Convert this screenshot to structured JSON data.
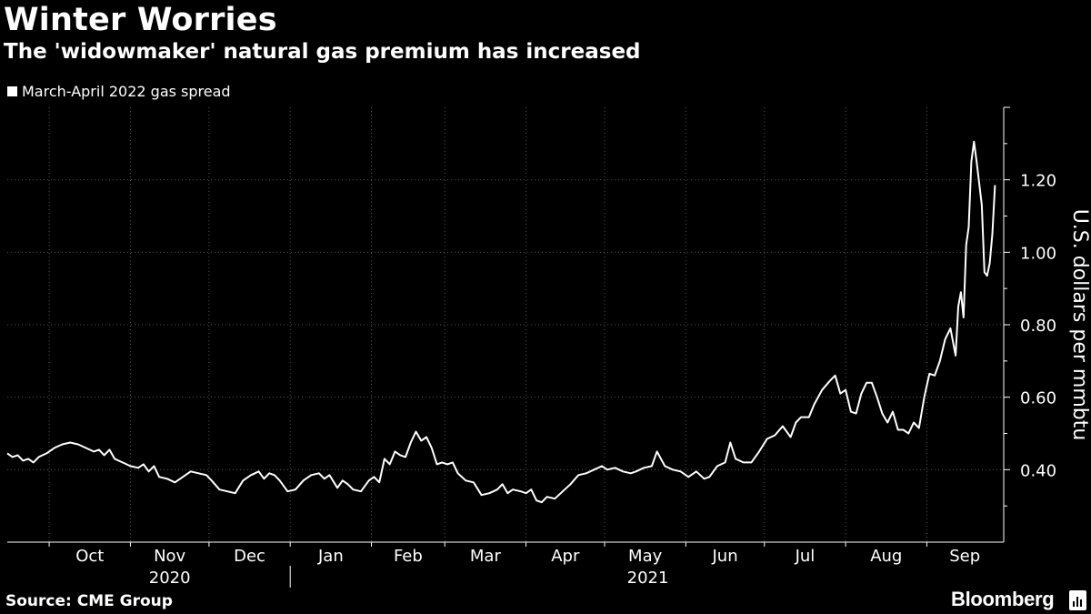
{
  "header": {
    "title": "Winter Worries",
    "subtitle": "The 'widowmaker' natural gas premium has increased",
    "legend_label": "March-April 2022 gas spread"
  },
  "footer": {
    "source": "Source: CME Group",
    "brand": "Bloomberg"
  },
  "colors": {
    "background": "#000000",
    "line": "#ffffff",
    "grid": "#555555"
  },
  "chart_data": {
    "type": "line",
    "title": "Winter Worries",
    "subtitle": "The 'widowmaker' natural gas premium has increased",
    "ylabel": "U.S. dollars per mmbtu",
    "ylim": [
      0.2,
      1.4
    ],
    "yticks": [
      0.4,
      0.6,
      0.8,
      1.0,
      1.2
    ],
    "ytick_labels": [
      "0.40",
      "0.60",
      "0.80",
      "1.00",
      "1.20"
    ],
    "xlim": [
      "2020-09-15",
      "2021-09-30"
    ],
    "month_boundaries": [
      "2020-10-01",
      "2020-11-01",
      "2020-12-01",
      "2021-01-01",
      "2021-02-01",
      "2021-03-01",
      "2021-04-01",
      "2021-05-01",
      "2021-06-01",
      "2021-07-01",
      "2021-08-01",
      "2021-09-01"
    ],
    "x_tick_labels": [
      {
        "label": "Oct",
        "date": "2020-10-01"
      },
      {
        "label": "Nov",
        "date": "2020-11-01"
      },
      {
        "label": "Dec",
        "date": "2020-12-01"
      },
      {
        "label": "Jan",
        "date": "2021-01-01"
      },
      {
        "label": "Feb",
        "date": "2021-02-01"
      },
      {
        "label": "Mar",
        "date": "2021-03-01"
      },
      {
        "label": "Apr",
        "date": "2021-04-01"
      },
      {
        "label": "May",
        "date": "2021-05-01"
      },
      {
        "label": "Jun",
        "date": "2021-06-01"
      },
      {
        "label": "Jul",
        "date": "2021-07-01"
      },
      {
        "label": "Aug",
        "date": "2021-08-01"
      },
      {
        "label": "Sep",
        "date": "2021-09-01"
      }
    ],
    "year_labels": [
      {
        "label": "2020",
        "start": "2020-10-01",
        "end": "2021-01-01"
      },
      {
        "label": "2021",
        "start": "2021-01-01",
        "end": "2021-10-01"
      }
    ],
    "grid": true,
    "legend_position": "top-left",
    "series": [
      {
        "name": "March-April 2022 gas spread",
        "points": [
          [
            "2020-09-15",
            0.445
          ],
          [
            "2020-09-17",
            0.435
          ],
          [
            "2020-09-19",
            0.44
          ],
          [
            "2020-09-21",
            0.425
          ],
          [
            "2020-09-23",
            0.43
          ],
          [
            "2020-09-25",
            0.42
          ],
          [
            "2020-09-27",
            0.435
          ],
          [
            "2020-09-30",
            0.445
          ],
          [
            "2020-10-03",
            0.46
          ],
          [
            "2020-10-06",
            0.47
          ],
          [
            "2020-10-09",
            0.475
          ],
          [
            "2020-10-12",
            0.47
          ],
          [
            "2020-10-15",
            0.46
          ],
          [
            "2020-10-18",
            0.45
          ],
          [
            "2020-10-20",
            0.455
          ],
          [
            "2020-10-22",
            0.44
          ],
          [
            "2020-10-24",
            0.455
          ],
          [
            "2020-10-26",
            0.43
          ],
          [
            "2020-10-29",
            0.42
          ],
          [
            "2020-11-01",
            0.41
          ],
          [
            "2020-11-04",
            0.405
          ],
          [
            "2020-11-06",
            0.415
          ],
          [
            "2020-11-08",
            0.395
          ],
          [
            "2020-11-10",
            0.41
          ],
          [
            "2020-11-12",
            0.38
          ],
          [
            "2020-11-15",
            0.375
          ],
          [
            "2020-11-18",
            0.365
          ],
          [
            "2020-11-21",
            0.38
          ],
          [
            "2020-11-24",
            0.395
          ],
          [
            "2020-11-27",
            0.39
          ],
          [
            "2020-11-30",
            0.385
          ],
          [
            "2020-12-02",
            0.37
          ],
          [
            "2020-12-05",
            0.345
          ],
          [
            "2020-12-08",
            0.34
          ],
          [
            "2020-12-11",
            0.335
          ],
          [
            "2020-12-14",
            0.37
          ],
          [
            "2020-12-17",
            0.385
          ],
          [
            "2020-12-20",
            0.395
          ],
          [
            "2020-12-22",
            0.375
          ],
          [
            "2020-12-24",
            0.39
          ],
          [
            "2020-12-26",
            0.385
          ],
          [
            "2020-12-28",
            0.37
          ],
          [
            "2020-12-31",
            0.34
          ],
          [
            "2021-01-03",
            0.345
          ],
          [
            "2021-01-06",
            0.37
          ],
          [
            "2021-01-09",
            0.385
          ],
          [
            "2021-01-12",
            0.39
          ],
          [
            "2021-01-14",
            0.375
          ],
          [
            "2021-01-16",
            0.385
          ],
          [
            "2021-01-19",
            0.35
          ],
          [
            "2021-01-21",
            0.37
          ],
          [
            "2021-01-23",
            0.36
          ],
          [
            "2021-01-25",
            0.345
          ],
          [
            "2021-01-28",
            0.34
          ],
          [
            "2021-01-31",
            0.37
          ],
          [
            "2021-02-02",
            0.38
          ],
          [
            "2021-02-04",
            0.365
          ],
          [
            "2021-02-06",
            0.43
          ],
          [
            "2021-02-08",
            0.415
          ],
          [
            "2021-02-10",
            0.45
          ],
          [
            "2021-02-12",
            0.44
          ],
          [
            "2021-02-14",
            0.435
          ],
          [
            "2021-02-16",
            0.475
          ],
          [
            "2021-02-18",
            0.505
          ],
          [
            "2021-02-20",
            0.48
          ],
          [
            "2021-02-22",
            0.49
          ],
          [
            "2021-02-24",
            0.46
          ],
          [
            "2021-02-26",
            0.415
          ],
          [
            "2021-02-28",
            0.42
          ],
          [
            "2021-03-02",
            0.415
          ],
          [
            "2021-03-04",
            0.42
          ],
          [
            "2021-03-06",
            0.39
          ],
          [
            "2021-03-09",
            0.37
          ],
          [
            "2021-03-12",
            0.365
          ],
          [
            "2021-03-15",
            0.33
          ],
          [
            "2021-03-18",
            0.335
          ],
          [
            "2021-03-21",
            0.345
          ],
          [
            "2021-03-23",
            0.36
          ],
          [
            "2021-03-25",
            0.335
          ],
          [
            "2021-03-27",
            0.345
          ],
          [
            "2021-03-30",
            0.34
          ],
          [
            "2021-04-01",
            0.335
          ],
          [
            "2021-04-03",
            0.345
          ],
          [
            "2021-04-05",
            0.315
          ],
          [
            "2021-04-07",
            0.31
          ],
          [
            "2021-04-09",
            0.325
          ],
          [
            "2021-04-12",
            0.32
          ],
          [
            "2021-04-15",
            0.34
          ],
          [
            "2021-04-18",
            0.36
          ],
          [
            "2021-04-21",
            0.385
          ],
          [
            "2021-04-24",
            0.39
          ],
          [
            "2021-04-27",
            0.4
          ],
          [
            "2021-04-30",
            0.41
          ],
          [
            "2021-05-02",
            0.4
          ],
          [
            "2021-05-05",
            0.405
          ],
          [
            "2021-05-08",
            0.395
          ],
          [
            "2021-05-11",
            0.39
          ],
          [
            "2021-05-13",
            0.395
          ],
          [
            "2021-05-16",
            0.405
          ],
          [
            "2021-05-19",
            0.41
          ],
          [
            "2021-05-21",
            0.45
          ],
          [
            "2021-05-24",
            0.41
          ],
          [
            "2021-05-27",
            0.4
          ],
          [
            "2021-05-30",
            0.395
          ],
          [
            "2021-06-02",
            0.38
          ],
          [
            "2021-06-05",
            0.395
          ],
          [
            "2021-06-08",
            0.375
          ],
          [
            "2021-06-10",
            0.38
          ],
          [
            "2021-06-13",
            0.41
          ],
          [
            "2021-06-16",
            0.42
          ],
          [
            "2021-06-18",
            0.475
          ],
          [
            "2021-06-20",
            0.43
          ],
          [
            "2021-06-23",
            0.42
          ],
          [
            "2021-06-26",
            0.42
          ],
          [
            "2021-06-29",
            0.45
          ],
          [
            "2021-07-02",
            0.485
          ],
          [
            "2021-07-05",
            0.495
          ],
          [
            "2021-07-08",
            0.52
          ],
          [
            "2021-07-11",
            0.49
          ],
          [
            "2021-07-13",
            0.53
          ],
          [
            "2021-07-15",
            0.545
          ],
          [
            "2021-07-18",
            0.545
          ],
          [
            "2021-07-20",
            0.58
          ],
          [
            "2021-07-23",
            0.62
          ],
          [
            "2021-07-26",
            0.645
          ],
          [
            "2021-07-28",
            0.66
          ],
          [
            "2021-07-30",
            0.61
          ],
          [
            "2021-08-01",
            0.62
          ],
          [
            "2021-08-03",
            0.56
          ],
          [
            "2021-08-05",
            0.555
          ],
          [
            "2021-08-07",
            0.61
          ],
          [
            "2021-08-09",
            0.64
          ],
          [
            "2021-08-11",
            0.64
          ],
          [
            "2021-08-13",
            0.6
          ],
          [
            "2021-08-15",
            0.555
          ],
          [
            "2021-08-17",
            0.53
          ],
          [
            "2021-08-19",
            0.56
          ],
          [
            "2021-08-21",
            0.51
          ],
          [
            "2021-08-23",
            0.51
          ],
          [
            "2021-08-25",
            0.5
          ],
          [
            "2021-08-27",
            0.53
          ],
          [
            "2021-08-29",
            0.515
          ],
          [
            "2021-08-31",
            0.6
          ],
          [
            "2021-09-02",
            0.665
          ],
          [
            "2021-09-04",
            0.66
          ],
          [
            "2021-09-06",
            0.7
          ],
          [
            "2021-09-08",
            0.76
          ],
          [
            "2021-09-10",
            0.79
          ],
          [
            "2021-09-12",
            0.715
          ],
          [
            "2021-09-13",
            0.85
          ],
          [
            "2021-09-14",
            0.89
          ],
          [
            "2021-09-15",
            0.82
          ],
          [
            "2021-09-16",
            1.02
          ],
          [
            "2021-09-17",
            1.07
          ],
          [
            "2021-09-18",
            1.25
          ],
          [
            "2021-09-19",
            1.305
          ],
          [
            "2021-09-20",
            1.25
          ],
          [
            "2021-09-22",
            1.13
          ],
          [
            "2021-09-23",
            0.945
          ],
          [
            "2021-09-24",
            0.935
          ],
          [
            "2021-09-25",
            0.97
          ],
          [
            "2021-09-26",
            1.05
          ],
          [
            "2021-09-27",
            1.185
          ]
        ]
      }
    ]
  }
}
